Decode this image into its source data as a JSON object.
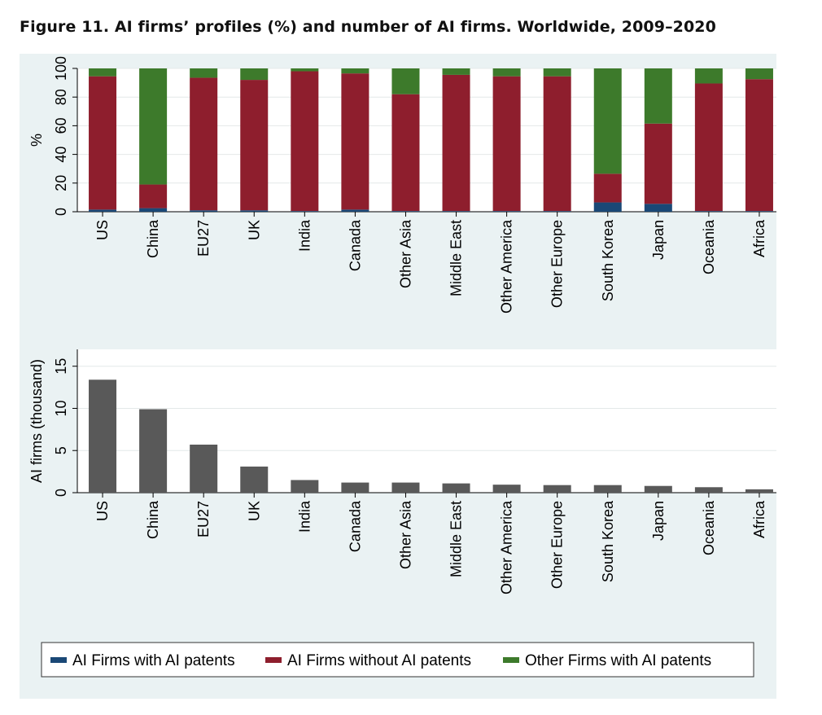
{
  "figure_title": "Figure 11. AI firms’ profiles (%) and number of AI firms. Worldwide, 2009–2020",
  "colors": {
    "panel_bg": "#eaf2f3",
    "plot_bg": "#ffffff",
    "ai_with_patents": "#1a4876",
    "ai_without_patents": "#8e1e2d",
    "other_with_patents": "#3d7a2b",
    "count_bar": "#595959",
    "grid": "#e4e8e8"
  },
  "chart_data": [
    {
      "type": "bar",
      "stacked": true,
      "title": "",
      "xlabel": "",
      "ylabel": "%",
      "ylim": [
        0,
        100
      ],
      "yticks": [
        0,
        20,
        40,
        60,
        80,
        100
      ],
      "categories": [
        "US",
        "China",
        "EU27",
        "UK",
        "India",
        "Canada",
        "Other Asia",
        "Middle East",
        "Other America",
        "Other Europe",
        "South Korea",
        "Japan",
        "Oceania",
        "Africa"
      ],
      "series": [
        {
          "name": "AI Firms with AI patents",
          "values": [
            1.5,
            2.5,
            1.0,
            1.0,
            0.5,
            1.5,
            0.5,
            0.5,
            0.5,
            0.5,
            6.5,
            5.5,
            0.5,
            0.5
          ]
        },
        {
          "name": "AI Firms without AI patents",
          "values": [
            93.0,
            16.5,
            92.5,
            91.0,
            97.5,
            95.0,
            81.5,
            95.0,
            94.0,
            94.0,
            20.0,
            56.0,
            89.0,
            92.0
          ]
        },
        {
          "name": "Other Firms with AI patents",
          "values": [
            5.5,
            81.0,
            6.5,
            8.0,
            2.0,
            3.5,
            18.0,
            4.5,
            5.5,
            5.5,
            73.5,
            38.5,
            10.5,
            7.5
          ]
        }
      ]
    },
    {
      "type": "bar",
      "title": "",
      "xlabel": "",
      "ylabel": "AI firms (thousand)",
      "ylim": [
        0,
        17
      ],
      "yticks": [
        0,
        5,
        10,
        15
      ],
      "categories": [
        "US",
        "China",
        "EU27",
        "UK",
        "India",
        "Canada",
        "Other Asia",
        "Middle East",
        "Other America",
        "Other Europe",
        "South Korea",
        "Japan",
        "Oceania",
        "Africa"
      ],
      "values": [
        13.4,
        9.9,
        5.7,
        3.1,
        1.5,
        1.2,
        1.2,
        1.1,
        0.95,
        0.9,
        0.9,
        0.8,
        0.65,
        0.4
      ]
    }
  ],
  "legend": {
    "position": "bottom",
    "items": [
      {
        "label": "AI Firms with AI patents",
        "color": "#1a4876"
      },
      {
        "label": "AI Firms without AI patents",
        "color": "#8e1e2d"
      },
      {
        "label": "Other Firms with AI patents",
        "color": "#3d7a2b"
      }
    ]
  }
}
